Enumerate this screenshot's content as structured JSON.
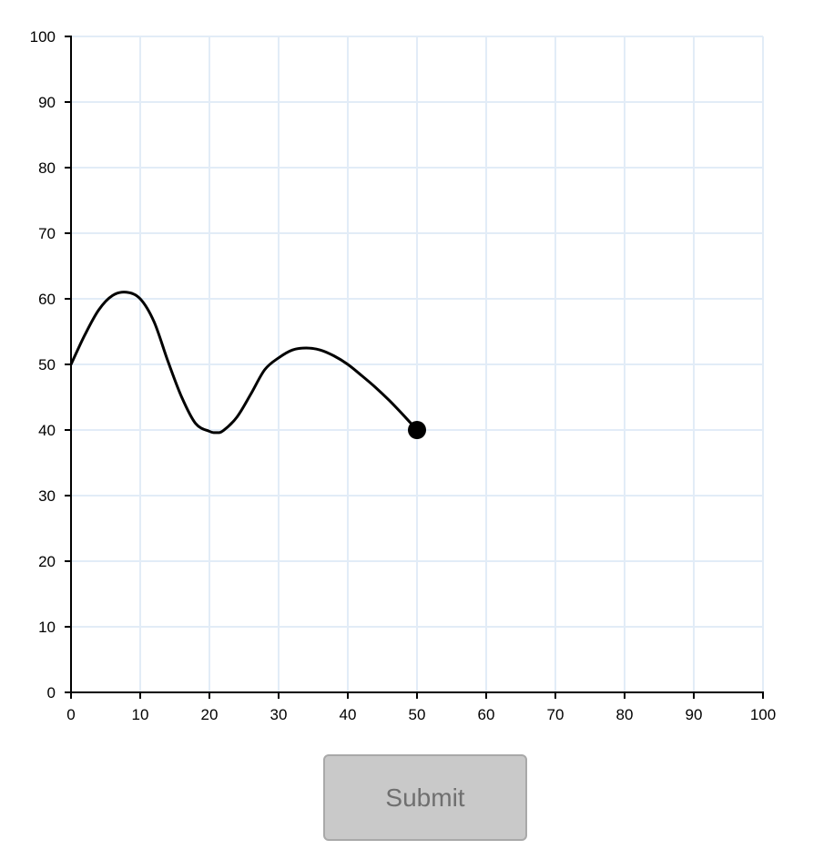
{
  "chart_data": {
    "type": "line",
    "title": "",
    "xlabel": "",
    "ylabel": "",
    "xlim": [
      0,
      100
    ],
    "ylim": [
      0,
      100
    ],
    "x_ticks": [
      0,
      10,
      20,
      30,
      40,
      50,
      60,
      70,
      80,
      90,
      100
    ],
    "y_ticks": [
      0,
      10,
      20,
      30,
      40,
      50,
      60,
      70,
      80,
      90,
      100
    ],
    "x_tick_labels": [
      "0",
      "10",
      "20",
      "30",
      "40",
      "50",
      "60",
      "70",
      "80",
      "90",
      "100"
    ],
    "y_tick_labels": [
      "0",
      "10",
      "20",
      "30",
      "40",
      "50",
      "60",
      "70",
      "80",
      "90",
      "100"
    ],
    "grid": true,
    "series": [
      {
        "x": [
          0,
          2,
          4,
          6,
          8,
          10,
          12,
          14,
          16,
          18,
          20,
          21,
          22,
          24,
          26,
          28,
          30,
          32,
          34,
          36,
          38,
          40,
          42,
          44,
          46,
          48,
          50
        ],
        "y": [
          50,
          54.5,
          58.3,
          60.5,
          61,
          60,
          56.5,
          50.5,
          45,
          41,
          39.8,
          39.6,
          39.9,
          42,
          45.5,
          49.2,
          51,
          52.2,
          52.5,
          52.2,
          51.3,
          50,
          48.3,
          46.5,
          44.5,
          42.3,
          40
        ]
      }
    ],
    "endpoint": {
      "x": 50,
      "y": 40
    },
    "colors": {
      "grid": "#e2ecf7",
      "axis": "#000000",
      "line": "#000000",
      "endpoint": "#000000"
    }
  },
  "submit": {
    "label": "Submit",
    "disabled": true
  }
}
